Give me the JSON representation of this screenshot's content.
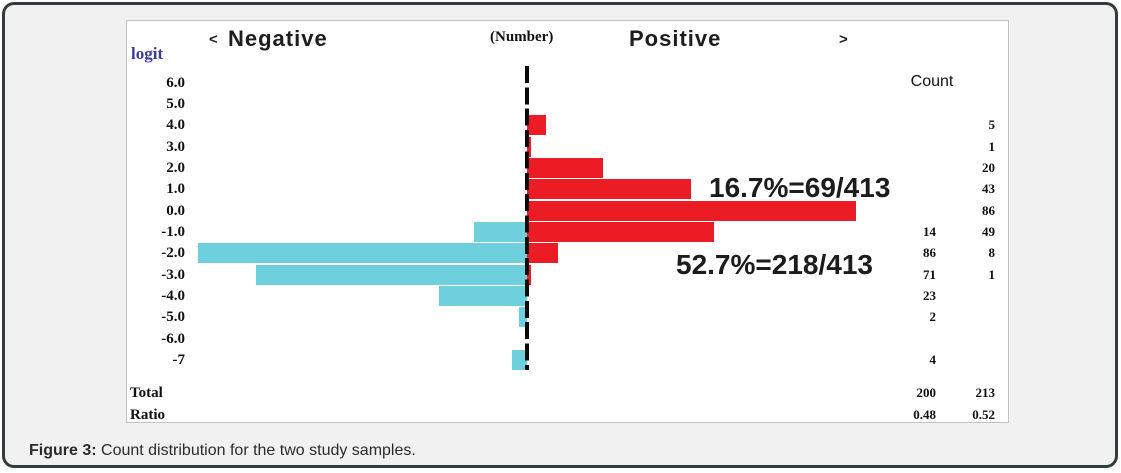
{
  "figure": {
    "caption_label": "Figure 3:",
    "caption_text": " Count distribution for the two study samples."
  },
  "chart_header": {
    "left_arrow": "<",
    "negative": "Negative",
    "number": "(Number)",
    "positive": "Positive",
    "right_arrow": ">",
    "count": "Count",
    "ylabel": "logit"
  },
  "chart_data": {
    "type": "bar",
    "orientation": "horizontal-diverging",
    "ylabel": "logit",
    "title": "(Number)",
    "legend": [
      "Negative",
      "Positive"
    ],
    "categories": [
      "6.0",
      "5.0",
      "4.0",
      "3.0",
      "2.0",
      "1.0",
      "0.0",
      "-1.0",
      "-2.0",
      "-3.0",
      "-4.0",
      "-5.0",
      "-6.0",
      "-7"
    ],
    "series": [
      {
        "name": "Negative",
        "color": "#6ecfdd",
        "values": [
          null,
          null,
          null,
          null,
          null,
          null,
          null,
          14,
          86,
          71,
          23,
          2,
          null,
          4
        ]
      },
      {
        "name": "Positive",
        "color": "#ec1c24",
        "values": [
          null,
          null,
          5,
          1,
          20,
          43,
          86,
          49,
          8,
          1,
          null,
          null,
          null,
          null
        ]
      }
    ],
    "total_row": {
      "label": "Total",
      "negative": "200",
      "positive": "213"
    },
    "ratio_row": {
      "label": "Ratio",
      "negative": "0.48",
      "positive": "0.52"
    },
    "annotations": [
      {
        "text": "16.7%=69/413"
      },
      {
        "text": "52.7%=218/413"
      }
    ],
    "zero_axis": {
      "style": "dashed",
      "color": "#0a0a0a"
    }
  },
  "colors": {
    "negative_bar": "#6ecfdd",
    "positive_bar": "#ec1c24",
    "ylabel_text": "#3a3aa0",
    "card_border": "#313d3d"
  }
}
